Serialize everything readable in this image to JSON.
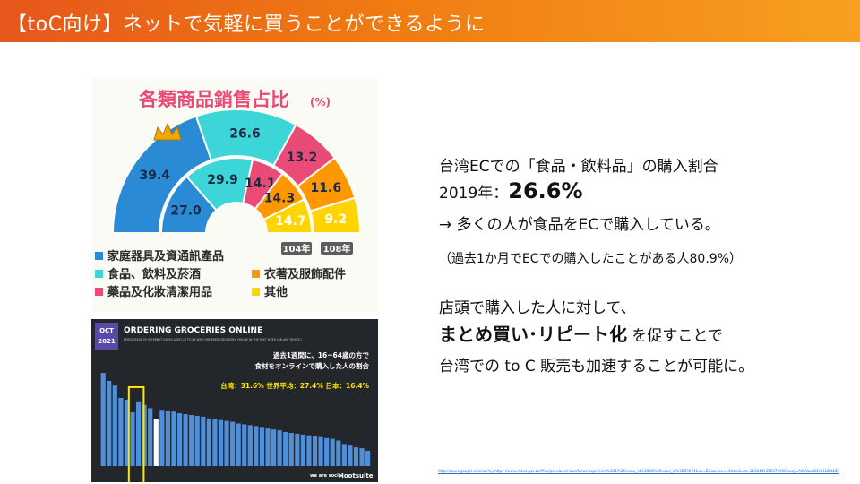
{
  "header": {
    "title": "【toC向け】ネットで気軽に買うことができるように"
  },
  "text": {
    "line1": "台湾ECでの「食品・飲料品」の購入割合",
    "line2_prefix": "2019年：",
    "line2_value": "26.6%",
    "line3": "→ 多くの人が食品をECで購入している。",
    "line4": "（過去1か月でECでの購入したことがある人80.9%）",
    "line5": "店頭で購入した人に対して、",
    "line6_bold": "まとめ買い･リピート化",
    "line6_rest": " を促すことで",
    "line7": "台湾での to C 販売も加速することが可能に。"
  },
  "source_link": "https://www.google.com/url?q=https://www.moea.gov.tw/Mns/populace/news/News.aspx?kind%3D1%26menu_id%3D40%26news_id%3D89064&sa=D&source=editors&ust=1638441355275000&usg=AOvVaw1NcB3LI8d4ZE",
  "chart_data": [
    {
      "type": "pie",
      "title": "各類商品銷售占比",
      "title_unit": "(%)",
      "colors": {
        "blue": "#2a8ad6",
        "cyan": "#3cd6d8",
        "pink": "#ea4a76",
        "orange": "#ff9800",
        "yellow": "#ffd400"
      },
      "outer_ring": {
        "label": "108年",
        "slices": [
          {
            "category": "家庭器具及資通訊產品",
            "value": 39.4
          },
          {
            "category": "食品、飲料及菸酒",
            "value": 26.6
          },
          {
            "category": "藥品及化妝清潔用品",
            "value": 13.2
          },
          {
            "category": "衣著及服飾配件",
            "value": 11.6
          },
          {
            "category": "其他",
            "value": 9.2
          }
        ]
      },
      "inner_ring": {
        "label": "104年",
        "slices": [
          {
            "category": "家庭器具及資通訊產品",
            "value": 27.0
          },
          {
            "category": "食品、飲料及菸酒",
            "value": 29.9
          },
          {
            "category": "藥品及化妝清潔用品",
            "value": 14.1
          },
          {
            "category": "衣著及服飾配件",
            "value": 14.3
          },
          {
            "category": "其他",
            "value": 14.7
          }
        ]
      },
      "legend": [
        {
          "label": "家庭器具及資通訊產品",
          "color": "#2a8ad6"
        },
        {
          "label": "食品、飲料及菸酒",
          "color": "#3cd6d8"
        },
        {
          "label": "衣著及服飾配件",
          "color": "#ff9800"
        },
        {
          "label": "藥品及化妝清潔用品",
          "color": "#ea4a76"
        },
        {
          "label": "其他",
          "color": "#ffd400"
        }
      ]
    },
    {
      "type": "bar",
      "badge": [
        "OCT",
        "2021"
      ],
      "title": "ORDERING GROCERIES ONLINE",
      "subtitle": "PERCENTAGE OF INTERNET USERS AGED 16 TO 64 WHO ORDERED GROCERIES ONLINE IN THE PAST WEEK (ON ANY DEVICE)",
      "annotation": [
        "過去1週間に、16~64歳の方で",
        "食材をオンラインで購入した人の割合"
      ],
      "highlight_text": "台湾：31.6%  世界平均：27.4%  日本：16.4%",
      "highlight_index": 5,
      "average_index": 9,
      "values": [
        54.7,
        50.0,
        47.3,
        40.0,
        39.0,
        31.6,
        38.0,
        36.0,
        34.0,
        27.4,
        33.0,
        32.5,
        32.0,
        31.0,
        30.5,
        30.0,
        29.5,
        29.0,
        28.0,
        27.5,
        27.0,
        26.5,
        26.0,
        25.0,
        24.5,
        24.0,
        23.5,
        23.0,
        22.0,
        21.5,
        21.0,
        20.0,
        19.5,
        19.0,
        18.5,
        18.0,
        17.5,
        17.0,
        16.4,
        16.0,
        15.0,
        13.0,
        12.0,
        11.0,
        10.5,
        9.0
      ],
      "brand": [
        "we are social",
        "Hootsuite"
      ]
    }
  ]
}
